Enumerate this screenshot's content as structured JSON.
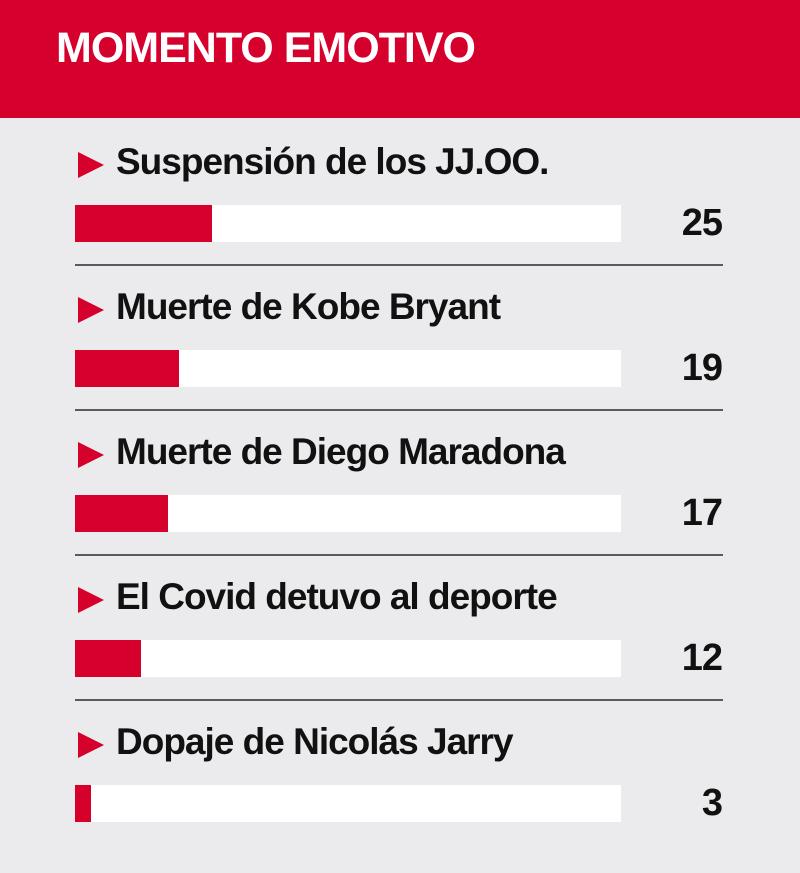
{
  "header": {
    "title": "MOMENTO EMOTIVO"
  },
  "colors": {
    "accent": "#d6002d",
    "background": "#ebebed",
    "track": "#ffffff"
  },
  "chart_data": {
    "type": "bar",
    "orientation": "horizontal",
    "title": "MOMENTO EMOTIVO",
    "categories": [
      "Suspensión de los JJ.OO.",
      "Muerte de Kobe Bryant",
      "Muerte de Diego Maradona",
      "El Covid detuvo al deporte",
      "Dopaje de Nicolás Jarry"
    ],
    "values": [
      25,
      19,
      17,
      12,
      3
    ],
    "xlim": [
      0,
      100
    ],
    "grid": false,
    "legend": "none"
  }
}
